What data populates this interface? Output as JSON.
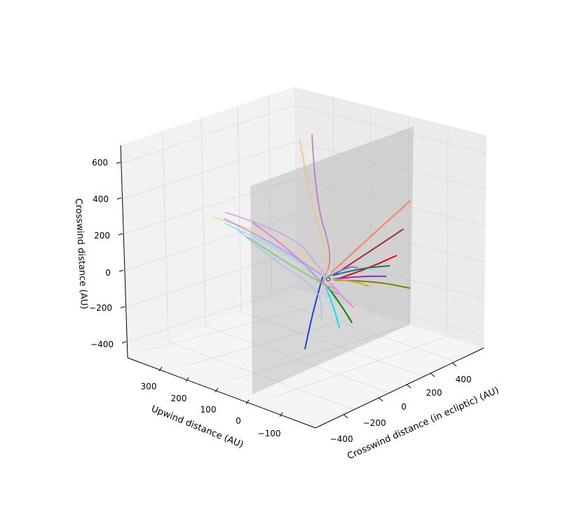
{
  "chart_data": {
    "type": "line-3d",
    "title": "",
    "axes": {
      "x": {
        "label": "Crosswind distance (in ecliptic) (AU)",
        "ticks": [
          "−400",
          "−200",
          "0",
          "200",
          "400"
        ],
        "range": [
          -500,
          500
        ]
      },
      "y": {
        "label": "Upwind distance (AU)",
        "ticks": [
          "−100",
          "0",
          "100",
          "200",
          "300"
        ],
        "range": [
          -150,
          380
        ]
      },
      "z": {
        "label": "Crosswind distance (AU)",
        "ticks": [
          "−400",
          "−200",
          "0",
          "200",
          "400",
          "600"
        ],
        "range": [
          -450,
          650
        ]
      }
    },
    "grid": true,
    "plane": {
      "description": "translucent grey plane at upwind distance ~0",
      "color": "#a0a0a0"
    },
    "sun_marker": true,
    "series": [
      {
        "color": "#1f3fe0",
        "points": [
          [
            -40,
            -10,
            30
          ],
          [
            -60,
            10,
            -150
          ],
          [
            -80,
            30,
            -380
          ]
        ]
      },
      {
        "color": "#00e5ff",
        "points": [
          [
            -20,
            -10,
            -40
          ],
          [
            40,
            -5,
            -200
          ],
          [
            90,
            10,
            -330
          ]
        ]
      },
      {
        "color": "#ff7f50",
        "points": [
          [
            10,
            -10,
            30
          ],
          [
            220,
            -20,
            140
          ],
          [
            440,
            -30,
            250
          ]
        ]
      },
      {
        "color": "#a52a2a",
        "points": [
          [
            30,
            -10,
            10
          ],
          [
            220,
            -20,
            60
          ],
          [
            400,
            -30,
            110
          ]
        ]
      },
      {
        "color": "#ff0000",
        "points": [
          [
            30,
            -10,
            -20
          ],
          [
            200,
            -20,
            -30
          ],
          [
            360,
            -30,
            -20
          ]
        ]
      },
      {
        "color": "#008080",
        "points": [
          [
            20,
            -10,
            10
          ],
          [
            150,
            -20,
            -5
          ],
          [
            320,
            -30,
            -60
          ]
        ]
      },
      {
        "color": "#8a2be2",
        "points": [
          [
            20,
            -10,
            -10
          ],
          [
            180,
            -20,
            -60
          ],
          [
            300,
            -30,
            -110
          ]
        ]
      },
      {
        "color": "#808000",
        "points": [
          [
            30,
            -10,
            -20
          ],
          [
            250,
            -20,
            -120
          ],
          [
            440,
            -30,
            -240
          ]
        ]
      },
      {
        "color": "#daa520",
        "points": [
          [
            20,
            -10,
            -10
          ],
          [
            120,
            -20,
            -60
          ],
          [
            200,
            -30,
            -120
          ]
        ]
      },
      {
        "color": "#ee82ee",
        "points": [
          [
            0,
            -10,
            -20
          ],
          [
            60,
            -20,
            -120
          ],
          [
            110,
            -30,
            -200
          ]
        ]
      },
      {
        "color": "#008000",
        "points": [
          [
            -10,
            -10,
            -40
          ],
          [
            50,
            -20,
            -160
          ],
          [
            100,
            -30,
            -280
          ]
        ]
      },
      {
        "color": "#9370db",
        "points": [
          [
            0,
            -5,
            10
          ],
          [
            110,
            -10,
            20
          ],
          [
            150,
            -20,
            0
          ]
        ]
      },
      {
        "color": "#c8a0d8",
        "points": [
          [
            -120,
            300,
            250
          ],
          [
            -30,
            100,
            200
          ],
          [
            -10,
            20,
            40
          ],
          [
            20,
            -10,
            -20
          ]
        ]
      },
      {
        "color": "#f5d08a",
        "points": [
          [
            -200,
            300,
            260
          ],
          [
            -60,
            120,
            180
          ],
          [
            -20,
            20,
            40
          ],
          [
            10,
            -10,
            -10
          ]
        ]
      },
      {
        "color": "#b070b0",
        "points": [
          [
            150,
            150,
            650
          ],
          [
            60,
            80,
            350
          ],
          [
            20,
            -10,
            120
          ],
          [
            -40,
            -10,
            -10
          ]
        ]
      },
      {
        "color": "#f5c070",
        "points": [
          [
            80,
            150,
            650
          ],
          [
            30,
            80,
            350
          ],
          [
            0,
            -10,
            120
          ],
          [
            -30,
            -10,
            -20
          ]
        ]
      },
      {
        "color": "#e066e0",
        "points": [
          [
            40,
            300,
            120
          ],
          [
            10,
            150,
            80
          ],
          [
            -20,
            -10,
            -40
          ],
          [
            40,
            -20,
            -100
          ]
        ]
      },
      {
        "color": "#a0c0f0",
        "points": [
          [
            -20,
            320,
            100
          ],
          [
            -40,
            180,
            20
          ],
          [
            -50,
            -10,
            -40
          ],
          [
            -60,
            -20,
            -200
          ]
        ]
      },
      {
        "color": "#66cc66",
        "points": [
          [
            40,
            320,
            30
          ],
          [
            10,
            180,
            0
          ],
          [
            -20,
            -10,
            -30
          ],
          [
            20,
            -20,
            -60
          ]
        ]
      },
      {
        "color": "#c080ff",
        "points": [
          [
            -80,
            330,
            180
          ],
          [
            -60,
            160,
            130
          ],
          [
            -30,
            20,
            40
          ],
          [
            -20,
            -10,
            20
          ]
        ]
      },
      {
        "color": "#80e0e0",
        "points": [
          [
            -60,
            340,
            140
          ],
          [
            -40,
            180,
            100
          ],
          [
            -20,
            20,
            20
          ],
          [
            0,
            -10,
            0
          ]
        ]
      }
    ]
  }
}
